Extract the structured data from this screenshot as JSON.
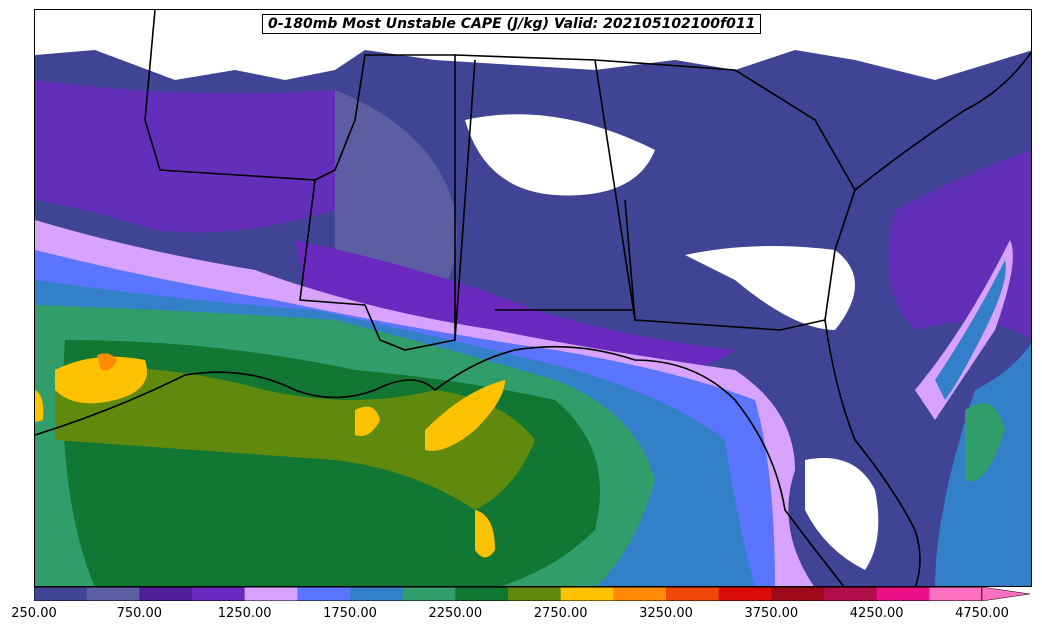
{
  "title": "0-180mb Most Unstable CAPE (J/kg) Valid: 202105102100f011",
  "colorbar": {
    "colors": [
      "#3f4494",
      "#5d5ea1",
      "#4e1f97",
      "#6a2ac0",
      "#d7a3ff",
      "#5b75fe",
      "#3380c8",
      "#319d6a",
      "#127732",
      "#5f8a0e",
      "#ffc202",
      "#ff8a05",
      "#ee4707",
      "#d90b0b",
      "#9c0b17",
      "#b00d49",
      "#ee1087",
      "#fd6fbf"
    ],
    "tick_labels": [
      "250.00",
      "750.00",
      "1250.00",
      "1750.00",
      "2250.00",
      "2750.00",
      "3250.00",
      "3750.00",
      "4250.00",
      "4750.00"
    ],
    "min": 250,
    "max": 4750,
    "extend": "max"
  },
  "map": {
    "fill_colors": {
      "none": "#ffffff",
      "low": "#3f4494",
      "low2": "#5d5ea1",
      "purple": "#6a2ac0",
      "lilac": "#d7a3ff",
      "blue": "#5b75fe",
      "mid_blue": "#3380c8",
      "teal": "#319d6a",
      "green": "#127732",
      "olive": "#5f8a0e",
      "gold": "#ffc202",
      "orange": "#ff8a05"
    }
  }
}
